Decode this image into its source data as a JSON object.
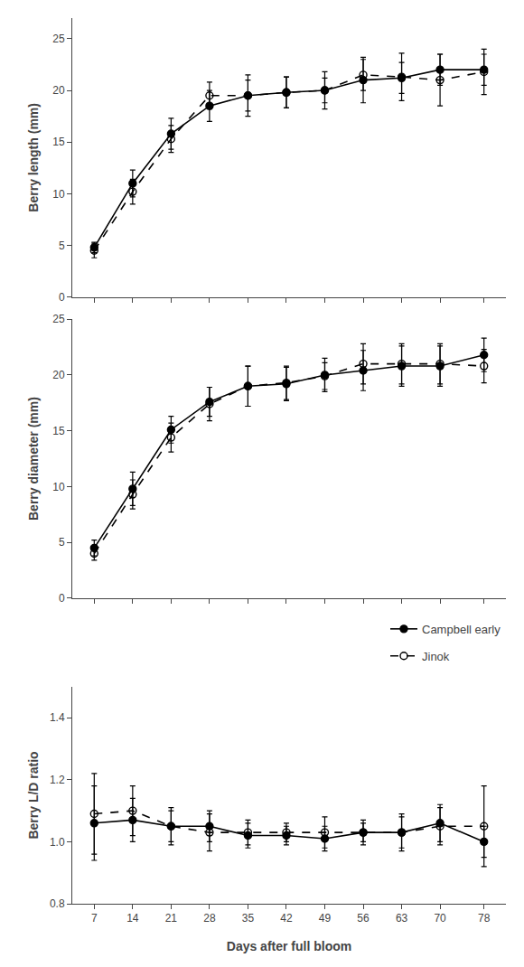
{
  "chart_data": [
    {
      "type": "line",
      "x": [
        7,
        14,
        21,
        28,
        35,
        42,
        49,
        56,
        63,
        70,
        78
      ],
      "xlim": [
        3,
        82
      ],
      "xticks": [
        7,
        14,
        21,
        28,
        35,
        42,
        49,
        56,
        63,
        70,
        78
      ],
      "ylabel": "Berry length (mm)",
      "ylim": [
        0,
        27
      ],
      "yticks": [
        0,
        5,
        10,
        15,
        20,
        25
      ],
      "grid": false,
      "tick_labels": "y",
      "series": [
        {
          "name": "Campbell early",
          "color": "#000000",
          "marker": "circle",
          "line_style": "solid",
          "values": [
            4.8,
            11.0,
            15.8,
            18.5,
            19.5,
            19.8,
            20.0,
            21.0,
            21.2,
            22.0,
            22.0
          ],
          "errors": [
            0.5,
            1.3,
            1.5,
            1.5,
            2.0,
            1.5,
            1.8,
            2.2,
            1.5,
            1.5,
            1.5
          ]
        },
        {
          "name": "Jinok",
          "color": "#000000",
          "marker": "circle-open",
          "line_style": "dash",
          "values": [
            4.5,
            10.2,
            15.3,
            19.5,
            19.5,
            19.8,
            20.0,
            21.5,
            21.3,
            21.0,
            21.8
          ],
          "errors": [
            0.7,
            1.2,
            1.3,
            1.3,
            1.5,
            1.5,
            1.2,
            1.5,
            2.3,
            2.5,
            2.2
          ]
        }
      ]
    },
    {
      "type": "line",
      "x": [
        7,
        14,
        21,
        28,
        35,
        42,
        49,
        56,
        63,
        70,
        78
      ],
      "xlim": [
        3,
        82
      ],
      "xticks": [
        7,
        14,
        21,
        28,
        35,
        42,
        49,
        56,
        63,
        70,
        78
      ],
      "ylabel": "Berry diameter (mm)",
      "ylim": [
        0,
        25
      ],
      "yticks": [
        0,
        5,
        10,
        15,
        20,
        25
      ],
      "grid": false,
      "tick_labels": "y",
      "legend": "bottom right",
      "series": [
        {
          "name": "Campbell early",
          "color": "#000000",
          "marker": "circle",
          "line_style": "solid",
          "values": [
            4.5,
            9.8,
            15.1,
            17.6,
            19.0,
            19.2,
            20.0,
            20.4,
            20.8,
            20.8,
            21.8
          ],
          "errors": [
            0.7,
            1.5,
            1.2,
            1.3,
            1.8,
            1.5,
            1.5,
            1.8,
            1.8,
            1.8,
            1.5
          ]
        },
        {
          "name": "Jinok",
          "color": "#000000",
          "marker": "circle-open",
          "line_style": "dash",
          "values": [
            4.0,
            9.3,
            14.4,
            17.4,
            19.0,
            19.3,
            19.9,
            21.0,
            21.0,
            21.0,
            20.8
          ],
          "errors": [
            0.6,
            1.3,
            1.3,
            1.5,
            1.8,
            1.5,
            1.2,
            1.8,
            1.8,
            1.8,
            1.5
          ]
        }
      ]
    },
    {
      "type": "line",
      "x": [
        7,
        14,
        21,
        28,
        35,
        42,
        49,
        56,
        63,
        70,
        78
      ],
      "xlim": [
        3,
        82
      ],
      "xticks": [
        7,
        14,
        21,
        28,
        35,
        42,
        49,
        56,
        63,
        70,
        78
      ],
      "xlabel": "Days after full bloom",
      "ylabel": "Berry L/D ratio",
      "ylim": [
        0.8,
        1.5
      ],
      "yticks": [
        0.8,
        {
          "value": 1.0,
          "label": "1.0"
        },
        1.2,
        1.4
      ],
      "grid": false,
      "series": [
        {
          "name": "Campbell early",
          "color": "#000000",
          "marker": "circle",
          "line_style": "solid",
          "values": [
            1.06,
            1.07,
            1.05,
            1.05,
            1.02,
            1.02,
            1.01,
            1.03,
            1.03,
            1.06,
            1.0
          ],
          "errors": [
            0.12,
            0.07,
            0.06,
            0.05,
            0.04,
            0.03,
            0.04,
            0.03,
            0.05,
            0.06,
            0.05
          ]
        },
        {
          "name": "Jinok",
          "color": "#000000",
          "marker": "circle-open",
          "line_style": "dash",
          "values": [
            1.09,
            1.1,
            1.05,
            1.03,
            1.03,
            1.03,
            1.03,
            1.03,
            1.03,
            1.05,
            1.05
          ],
          "errors": [
            0.13,
            0.08,
            0.05,
            0.06,
            0.04,
            0.03,
            0.05,
            0.04,
            0.06,
            0.06,
            0.13
          ]
        }
      ]
    }
  ]
}
